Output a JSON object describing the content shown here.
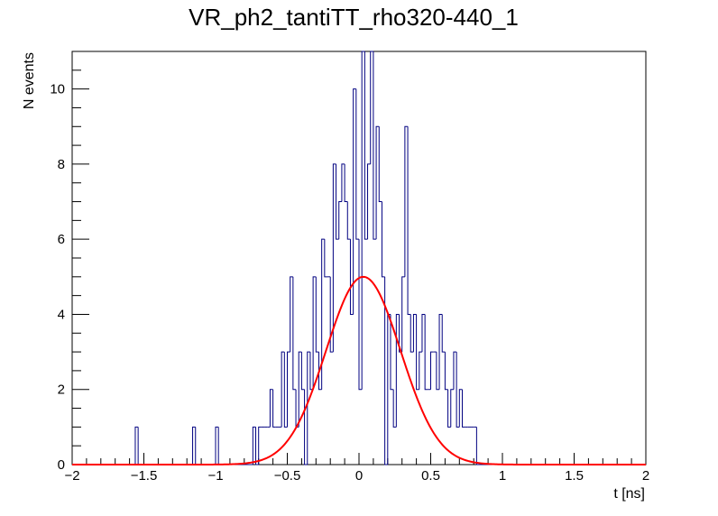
{
  "chart_data": {
    "type": "histogram",
    "title": "VR_ph2_tantiTT_rho320-440_1",
    "xlabel": "t [ns]",
    "ylabel": "N events",
    "xlim": [
      -2,
      2
    ],
    "ylim": [
      0,
      11
    ],
    "x_ticks": [
      -2,
      -1.5,
      -1,
      -0.5,
      0,
      0.5,
      1,
      1.5,
      2
    ],
    "x_tick_labels": [
      "−2",
      "−1.5",
      "−1",
      "−0.5",
      "0",
      "0.5",
      "1",
      "1.5",
      "2"
    ],
    "y_ticks": [
      0,
      2,
      4,
      6,
      8,
      10
    ],
    "y_tick_labels": [
      "0",
      "2",
      "4",
      "6",
      "8",
      "10"
    ],
    "bin_width": 0.02,
    "bins": [
      [
        -1.56,
        1
      ],
      [
        -1.16,
        1
      ],
      [
        -1.0,
        1
      ],
      [
        -0.74,
        1
      ],
      [
        -0.7,
        1
      ],
      [
        -0.68,
        1
      ],
      [
        -0.66,
        1
      ],
      [
        -0.64,
        1
      ],
      [
        -0.62,
        2
      ],
      [
        -0.6,
        1
      ],
      [
        -0.58,
        1
      ],
      [
        -0.56,
        1
      ],
      [
        -0.54,
        3
      ],
      [
        -0.52,
        1
      ],
      [
        -0.5,
        3
      ],
      [
        -0.48,
        5
      ],
      [
        -0.46,
        2
      ],
      [
        -0.44,
        1
      ],
      [
        -0.42,
        3
      ],
      [
        -0.4,
        2
      ],
      [
        -0.38,
        0
      ],
      [
        -0.36,
        3
      ],
      [
        -0.34,
        2
      ],
      [
        -0.32,
        5
      ],
      [
        -0.3,
        3
      ],
      [
        -0.28,
        2
      ],
      [
        -0.26,
        6
      ],
      [
        -0.24,
        5
      ],
      [
        -0.22,
        5
      ],
      [
        -0.2,
        3
      ],
      [
        -0.18,
        8
      ],
      [
        -0.16,
        6
      ],
      [
        -0.14,
        7
      ],
      [
        -0.12,
        8
      ],
      [
        -0.1,
        7
      ],
      [
        -0.08,
        6
      ],
      [
        -0.06,
        4
      ],
      [
        -0.04,
        10
      ],
      [
        -0.02,
        6
      ],
      [
        0.0,
        2
      ],
      [
        0.02,
        11
      ],
      [
        0.04,
        6
      ],
      [
        0.06,
        8
      ],
      [
        0.08,
        11
      ],
      [
        0.1,
        6
      ],
      [
        0.12,
        9
      ],
      [
        0.14,
        7
      ],
      [
        0.16,
        5
      ],
      [
        0.18,
        0
      ],
      [
        0.2,
        4
      ],
      [
        0.22,
        2
      ],
      [
        0.24,
        1
      ],
      [
        0.26,
        4
      ],
      [
        0.28,
        3
      ],
      [
        0.3,
        5
      ],
      [
        0.32,
        9
      ],
      [
        0.34,
        4
      ],
      [
        0.36,
        3
      ],
      [
        0.38,
        4
      ],
      [
        0.4,
        2
      ],
      [
        0.42,
        3
      ],
      [
        0.44,
        4
      ],
      [
        0.46,
        2
      ],
      [
        0.48,
        2
      ],
      [
        0.5,
        3
      ],
      [
        0.52,
        3
      ],
      [
        0.54,
        2
      ],
      [
        0.56,
        4
      ],
      [
        0.58,
        3
      ],
      [
        0.6,
        2
      ],
      [
        0.62,
        1
      ],
      [
        0.64,
        2
      ],
      [
        0.66,
        3
      ],
      [
        0.68,
        1
      ],
      [
        0.7,
        2
      ],
      [
        0.72,
        1
      ],
      [
        0.74,
        1
      ],
      [
        0.76,
        1
      ],
      [
        0.78,
        1
      ],
      [
        0.8,
        1
      ]
    ],
    "fit": {
      "function": "gaus",
      "amplitude": 5.0,
      "mean": 0.03,
      "sigma": 0.26
    },
    "colors": {
      "histogram": "#000080",
      "fit": "#ff0000",
      "axis": "#000000",
      "background": "#ffffff"
    }
  }
}
